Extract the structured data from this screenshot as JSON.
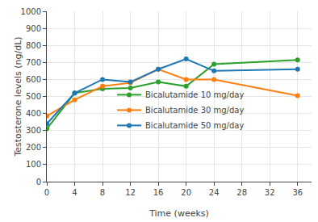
{
  "chart_data": {
    "type": "line",
    "x_label": "Time (weeks)",
    "y_label": "Testosterone levels (ng/dL)",
    "x": [
      0,
      4,
      8,
      12,
      16,
      20,
      24,
      36
    ],
    "series": [
      {
        "name": "Bicalutamide 10 mg/day",
        "color": "#2ca02c",
        "values": [
          310,
          520,
          545,
          550,
          585,
          560,
          690,
          715
        ]
      },
      {
        "name": "Bicalutamide 30 mg/day",
        "color": "#ff7f0e",
        "values": [
          385,
          480,
          560,
          580,
          660,
          600,
          600,
          505
        ]
      },
      {
        "name": "Bicalutamide 50 mg/day",
        "color": "#1f77b4",
        "values": [
          340,
          520,
          600,
          585,
          660,
          720,
          650,
          660
        ]
      }
    ],
    "xlim": [
      0,
      38
    ],
    "xticks": [
      0,
      4,
      8,
      12,
      16,
      20,
      24,
      28,
      32,
      36
    ],
    "ylim": [
      0,
      1000
    ],
    "yticks": [
      0,
      100,
      200,
      300,
      400,
      500,
      600,
      700,
      800,
      900,
      1000
    ],
    "grid": true,
    "legend": "center",
    "marker": "circle"
  }
}
